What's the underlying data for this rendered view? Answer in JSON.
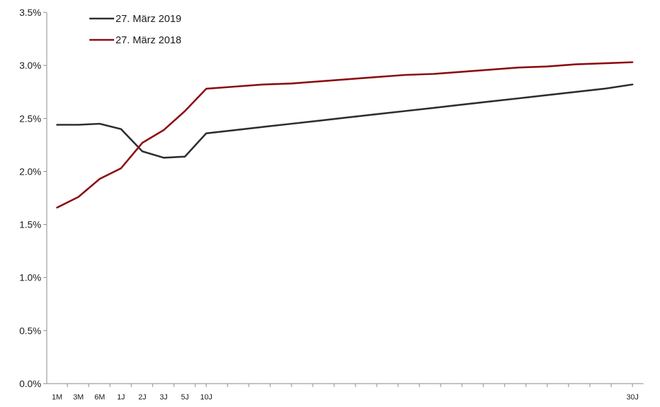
{
  "chart_data": {
    "type": "line",
    "ylim": [
      0,
      3.5
    ],
    "y_ticks": [
      "0.0%",
      "0.5%",
      "1.0%",
      "1.5%",
      "2.0%",
      "2.5%",
      "3.0%",
      "3.5%"
    ],
    "x_labels": [
      "1M",
      "3M",
      "6M",
      "1J",
      "2J",
      "3J",
      "5J",
      "10J",
      "30J"
    ],
    "x_positions": [
      0.083,
      0.25,
      0.5,
      1,
      2,
      3,
      5,
      10,
      30
    ],
    "legend_position": "top-left",
    "grid": false,
    "series": [
      {
        "name": "27. März 2019",
        "color": "#2a2e33",
        "points": [
          [
            0.083,
            2.44
          ],
          [
            0.25,
            2.44
          ],
          [
            0.5,
            2.45
          ],
          [
            1,
            2.4
          ],
          [
            2,
            2.19
          ],
          [
            3,
            2.13
          ],
          [
            4,
            2.14
          ],
          [
            5,
            2.36
          ],
          [
            6,
            2.39
          ],
          [
            7,
            2.42
          ],
          [
            8,
            2.45
          ],
          [
            9,
            2.48
          ],
          [
            10,
            2.51
          ],
          [
            11,
            2.54
          ],
          [
            12,
            2.57
          ],
          [
            13,
            2.6
          ],
          [
            14,
            2.63
          ],
          [
            15,
            2.66
          ],
          [
            16,
            2.69
          ],
          [
            17,
            2.72
          ],
          [
            18,
            2.75
          ],
          [
            19,
            2.78
          ],
          [
            20,
            2.82
          ]
        ]
      },
      {
        "name": "27. März 2018",
        "color": "#8b0a10",
        "points": [
          [
            0.083,
            1.66
          ],
          [
            0.25,
            1.76
          ],
          [
            0.5,
            1.93
          ],
          [
            1,
            2.03
          ],
          [
            2,
            2.27
          ],
          [
            3,
            2.39
          ],
          [
            4,
            2.57
          ],
          [
            5,
            2.78
          ],
          [
            6,
            2.8
          ],
          [
            7,
            2.82
          ],
          [
            8,
            2.83
          ],
          [
            9,
            2.85
          ],
          [
            10,
            2.87
          ],
          [
            11,
            2.89
          ],
          [
            12,
            2.91
          ],
          [
            13,
            2.92
          ],
          [
            14,
            2.94
          ],
          [
            15,
            2.96
          ],
          [
            16,
            2.98
          ],
          [
            17,
            2.99
          ],
          [
            18,
            3.01
          ],
          [
            19,
            3.02
          ],
          [
            20,
            3.03
          ]
        ]
      }
    ]
  }
}
